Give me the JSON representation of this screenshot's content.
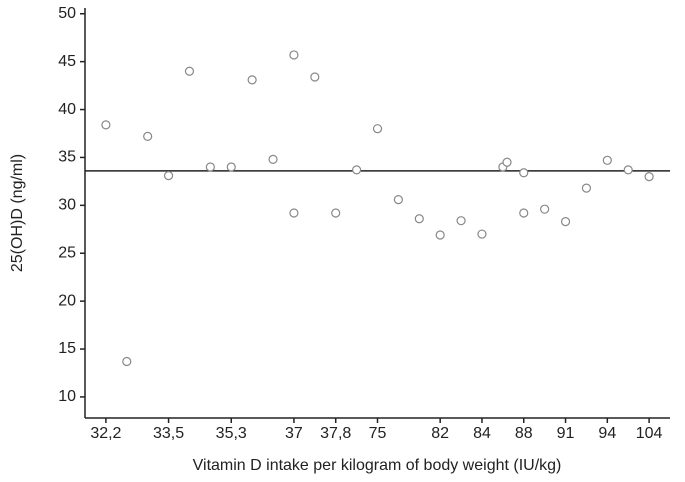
{
  "chart_data": {
    "type": "scatter",
    "x_label": "Vitamin D intake per kilogram of body weight (IU/kg)",
    "y_label": "25(OH)D (ng/ml)",
    "x": [
      0,
      1,
      2,
      3,
      4,
      5,
      6,
      7,
      8,
      9,
      9,
      10,
      11,
      12,
      13,
      14,
      15,
      16,
      17,
      18,
      19,
      19.2,
      20,
      20,
      21,
      22,
      23,
      24,
      25,
      26
    ],
    "values": [
      38.4,
      13.7,
      37.2,
      33.1,
      44.0,
      34.0,
      34.0,
      43.1,
      34.8,
      45.7,
      29.2,
      43.4,
      29.2,
      33.7,
      38.0,
      30.6,
      28.6,
      26.9,
      28.4,
      27.0,
      34.0,
      34.5,
      33.4,
      29.2,
      29.6,
      28.3,
      31.8,
      34.7,
      33.7,
      33.0
    ],
    "color": "#888888",
    "reference_line": 33.6,
    "xlim": [
      -1,
      27
    ],
    "xticks": [
      {
        "value": 0,
        "label": "32,2"
      },
      {
        "value": 3,
        "label": "33,5"
      },
      {
        "value": 6,
        "label": "35,3"
      },
      {
        "value": 9,
        "label": "37"
      },
      {
        "value": 11,
        "label": "37,8"
      },
      {
        "value": 13,
        "label": "75"
      },
      {
        "value": 16,
        "label": "82"
      },
      {
        "value": 18,
        "label": "84"
      },
      {
        "value": 20,
        "label": "88"
      },
      {
        "value": 22,
        "label": "91"
      },
      {
        "value": 24,
        "label": "94"
      },
      {
        "value": 26,
        "label": "104"
      }
    ],
    "ylim": [
      7.8,
      50.6
    ],
    "yticks": [
      10,
      15,
      20,
      25,
      30,
      35,
      40,
      45,
      50
    ]
  }
}
